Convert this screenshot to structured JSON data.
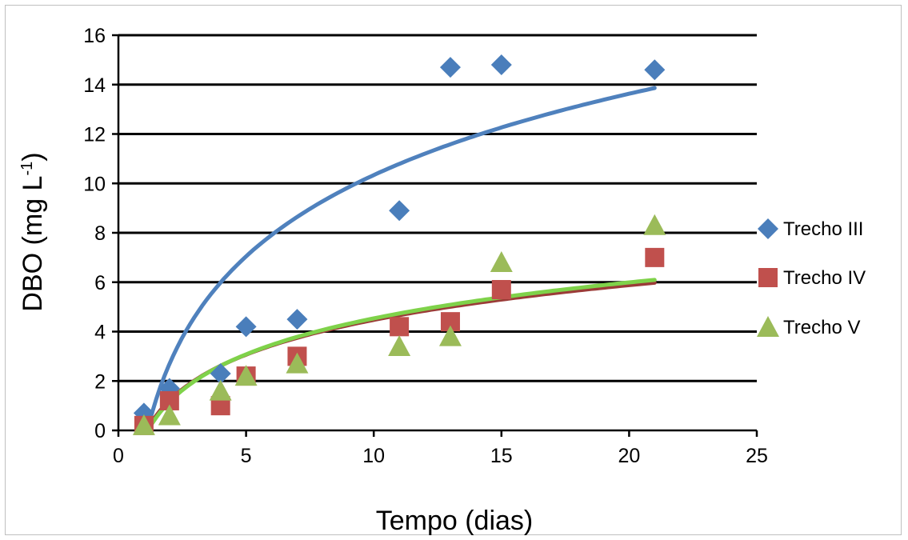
{
  "chart_data": {
    "type": "scatter",
    "xlabel": "Tempo (dias)",
    "ylabel_main": "DBO (mg L",
    "ylabel_sup": "-1",
    "ylabel_close": ")",
    "xlim": [
      0,
      25
    ],
    "ylim": [
      0,
      16
    ],
    "xticks": [
      0,
      5,
      10,
      15,
      20,
      25
    ],
    "yticks": [
      0,
      2,
      4,
      6,
      8,
      10,
      12,
      14,
      16
    ],
    "grid": "horizontal",
    "legend_position": "right",
    "series": [
      {
        "name": "Trecho III",
        "marker": "diamond",
        "color": "#4a7ebb",
        "line_color": "#4f81bd",
        "x": [
          1,
          2,
          4,
          5,
          7,
          11,
          13,
          15,
          21
        ],
        "y": [
          0.7,
          1.7,
          2.3,
          4.2,
          4.5,
          8.9,
          14.7,
          14.8,
          14.6
        ],
        "trend": {
          "type": "log",
          "a": 4.75,
          "b": -0.6,
          "x0": 1.15,
          "x1": 21
        }
      },
      {
        "name": "Trecho IV",
        "marker": "square",
        "color": "#c0504d",
        "line_color": "#9b3b38",
        "x": [
          1,
          2,
          4,
          5,
          7,
          11,
          13,
          15,
          21
        ],
        "y": [
          0.2,
          1.2,
          1.0,
          2.2,
          3.0,
          4.2,
          4.4,
          5.7,
          7.0
        ],
        "trend": {
          "type": "log",
          "a": 2.03,
          "b": -0.2,
          "x0": 1.15,
          "x1": 21
        }
      },
      {
        "name": "Trecho V",
        "marker": "triangle",
        "color": "#9bbb59",
        "line_color": "#7fd24a",
        "x": [
          1,
          2,
          4,
          5,
          7,
          11,
          13,
          15,
          21
        ],
        "y": [
          0.2,
          0.6,
          1.6,
          2.2,
          2.7,
          3.4,
          3.8,
          6.8,
          8.3
        ],
        "trend": {
          "type": "log",
          "a": 2.1,
          "b": -0.3,
          "x0": 1.15,
          "x1": 21
        }
      }
    ]
  }
}
